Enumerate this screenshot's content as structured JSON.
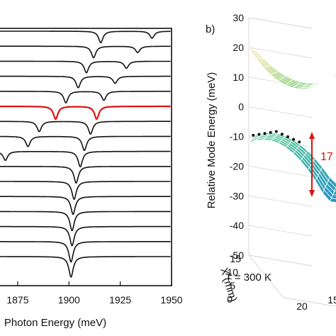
{
  "chart_data": [
    {
      "type": "line",
      "panel": "a",
      "xlabel": "Photon Energy (meV)",
      "x_ticks": [
        "1875",
        "1900",
        "1925",
        "1950"
      ],
      "xlim": [
        1865,
        1950
      ],
      "annotation": "T = 300 K",
      "highlight_color": "#e01010",
      "trace_color": "#111111",
      "traces": [
        {
          "dips": [
            [
              1915.5,
              0.9
            ],
            [
              1940.5,
              0.55
            ]
          ]
        },
        {
          "dips": [
            [
              1912.0,
              0.9
            ],
            [
              1933.5,
              0.5
            ]
          ]
        },
        {
          "dips": [
            [
              1908.5,
              0.9
            ],
            [
              1928.0,
              0.55
            ]
          ]
        },
        {
          "dips": [
            [
              1904.5,
              0.9
            ],
            [
              1922.5,
              0.55
            ]
          ]
        },
        {
          "dips": [
            [
              1898.5,
              0.9
            ],
            [
              1917.0,
              0.7
            ]
          ]
        },
        {
          "dips": [
            [
              1893.5,
              1.0
            ],
            [
              1913.5,
              1.0
            ]
          ],
          "highlight": true
        },
        {
          "dips": [
            [
              1885.5,
              0.8
            ],
            [
              1910.5,
              1.0
            ]
          ]
        },
        {
          "dips": [
            [
              1880.0,
              0.8
            ],
            [
              1907.5,
              1.1
            ]
          ]
        },
        {
          "dips": [
            [
              1869.0,
              0.7
            ],
            [
              1905.5,
              1.2
            ]
          ]
        },
        {
          "dips": [
            [
              1903.5,
              1.3
            ]
          ]
        },
        {
          "dips": [
            [
              1902.5,
              1.4
            ]
          ]
        },
        {
          "dips": [
            [
              1902.0,
              1.4
            ]
          ]
        },
        {
          "dips": [
            [
              1901.5,
              1.5
            ]
          ]
        },
        {
          "dips": [
            [
              1901.5,
              1.5
            ]
          ]
        },
        {
          "dips": [
            [
              1901.0,
              1.6
            ]
          ]
        },
        {
          "dips": [
            [
              1901.0,
              1.6
            ]
          ]
        }
      ]
    },
    {
      "type": "surface3d",
      "panel": "b",
      "panel_label": "b)",
      "zlabel": "Relative Mode Energy (meV)",
      "z_ticks": [
        "30",
        "20",
        "10",
        "0",
        "-10",
        "-20",
        "-30",
        "-40",
        "-50"
      ],
      "zlim": [
        -50,
        30
      ],
      "xlabel": "X (mm)",
      "x_ticks": [
        "15",
        "10",
        "5",
        "0"
      ],
      "y_ticks": [
        "20",
        "15"
      ],
      "annotation": "17",
      "annotation_color": "#e01010",
      "upper_surface": {
        "min": 8.5,
        "edge": 20
      },
      "lower_surface": {
        "max": -8.5,
        "edge": -28
      }
    }
  ]
}
